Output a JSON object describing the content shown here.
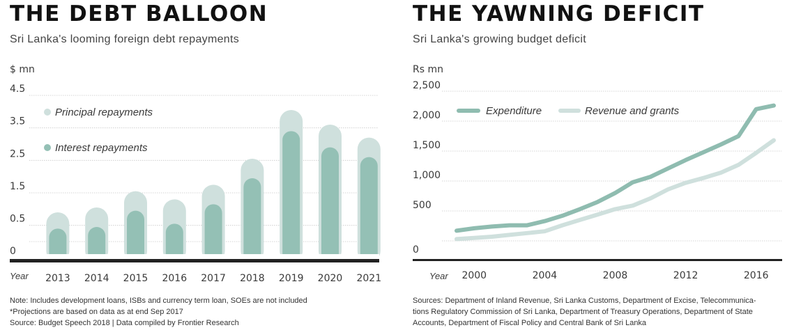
{
  "chart_data": [
    {
      "type": "bar",
      "title": "THE DEBT BALLOON",
      "subtitle": "Sri Lanka's looming foreign debt repayments",
      "ylabel": "$ mn",
      "xlabel": "Year",
      "ylim": [
        0,
        4.5
      ],
      "yticks": [
        0,
        0.5,
        1.5,
        2.5,
        3.5,
        4.5
      ],
      "grid": true,
      "legend_position": "top-left",
      "categories": [
        "2013",
        "2014",
        "2015",
        "2016",
        "2017",
        "2018",
        "2019",
        "2020",
        "2021"
      ],
      "series": [
        {
          "name": "Principal repayments",
          "values": [
            0.9,
            1.05,
            1.55,
            1.3,
            1.75,
            2.55,
            4.05,
            3.6,
            3.2
          ]
        },
        {
          "name": "Interest repayments",
          "values": [
            0.4,
            0.45,
            0.95,
            0.55,
            1.15,
            1.95,
            3.4,
            2.9,
            2.6
          ]
        }
      ],
      "colors": {
        "principal": "#cfe0dd",
        "interest": "#94c0b5"
      },
      "notes": [
        "Note: Includes development loans, ISBs and currency term loan, SOEs are not included",
        "*Projections are based on data as at end Sep 2017",
        "Source: Budget Speech 2018 | Data compiled by Frontier Research"
      ]
    },
    {
      "type": "line",
      "title": "THE YAWNING DEFICIT",
      "subtitle": "Sri Lanka's growing budget deficit",
      "ylabel": "Rs mn",
      "xlabel": "Year",
      "ylim": [
        0,
        2500
      ],
      "yticks": [
        0,
        500,
        1000,
        1500,
        2000,
        2500
      ],
      "ytick_labels": [
        "0",
        "500",
        "1,000",
        "1,500",
        "2,000",
        "2,500"
      ],
      "xlim": [
        1999,
        2017
      ],
      "xticks": [
        2000,
        2004,
        2008,
        2012,
        2016
      ],
      "grid": true,
      "legend_position": "top-left",
      "x": [
        1999,
        2000,
        2001,
        2002,
        2003,
        2004,
        2005,
        2006,
        2007,
        2008,
        2009,
        2010,
        2011,
        2012,
        2013,
        2014,
        2015,
        2016,
        2017
      ],
      "series": [
        {
          "name": "Expenditure",
          "values": [
            170,
            210,
            240,
            260,
            260,
            330,
            420,
            530,
            650,
            800,
            980,
            1070,
            1210,
            1350,
            1480,
            1610,
            1750,
            2200,
            2260
          ]
        },
        {
          "name": "Revenue and grants",
          "values": [
            30,
            50,
            70,
            100,
            130,
            160,
            260,
            350,
            440,
            530,
            590,
            710,
            860,
            970,
            1050,
            1140,
            1270,
            1470,
            1680
          ]
        }
      ],
      "colors": {
        "expenditure": "#8fbcb0",
        "revenue": "#cfe0dd"
      },
      "notes": [
        "Sources: Department of Inland Revenue, Sri Lanka Customs, Department of Excise, Telecommunica-",
        "tions Regulatory Commission of Sri Lanka, Department of Treasury Operations, Department of State",
        "Accounts, Department of Fiscal Policy and Central Bank of Sri Lanka"
      ]
    }
  ]
}
